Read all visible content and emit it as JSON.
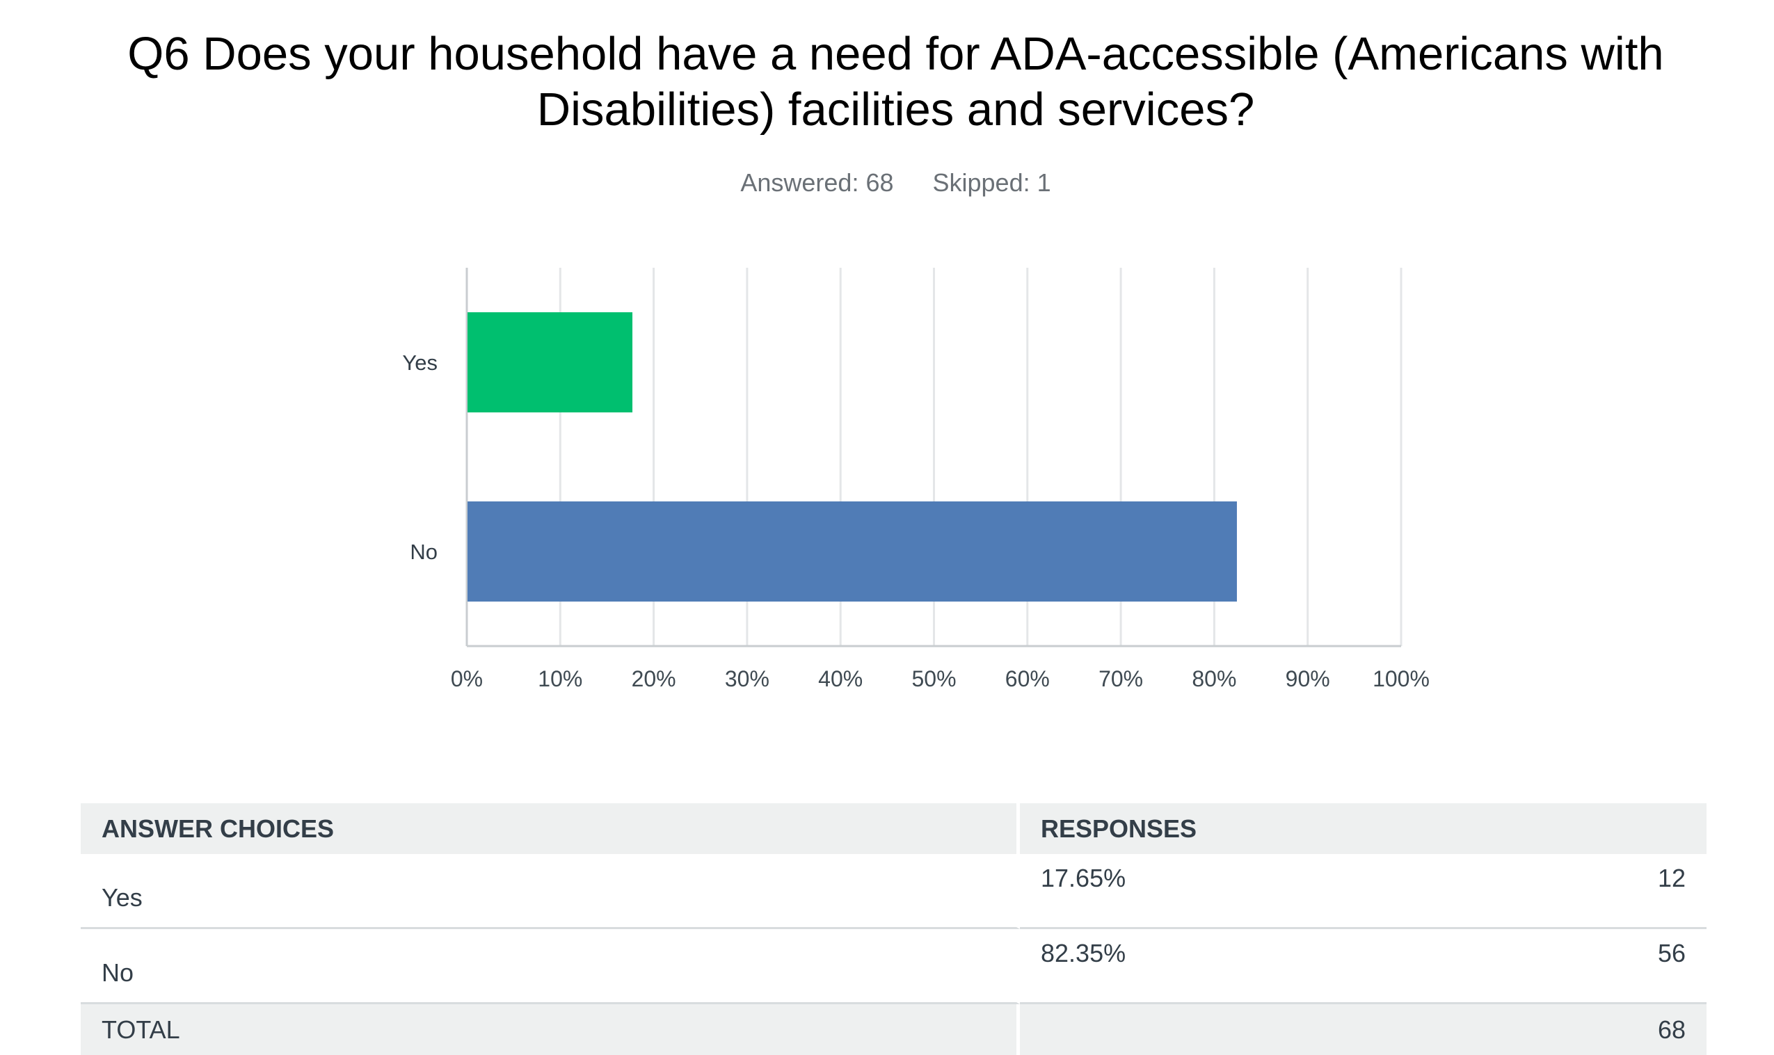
{
  "question": {
    "title_line1": "Q6 Does your household have a need for ADA-accessible (Americans with",
    "title_line2": "Disabilities) facilities and services?",
    "answered_label": "Answered: 68",
    "skipped_label": "Skipped: 1"
  },
  "chart_data": {
    "type": "bar",
    "orientation": "horizontal",
    "categories": [
      "Yes",
      "No"
    ],
    "values": [
      17.65,
      82.35
    ],
    "colors": [
      "#00bf6f",
      "#507cb6"
    ],
    "xlim": [
      0,
      100
    ],
    "x_ticks": [
      "0%",
      "10%",
      "20%",
      "30%",
      "40%",
      "50%",
      "60%",
      "70%",
      "80%",
      "90%",
      "100%"
    ],
    "grid": true,
    "title": "",
    "xlabel": "",
    "ylabel": ""
  },
  "table": {
    "header_choices": "ANSWER CHOICES",
    "header_responses": "RESPONSES",
    "rows": [
      {
        "choice": "Yes",
        "percent": "17.65%",
        "count": "12"
      },
      {
        "choice": "No",
        "percent": "82.35%",
        "count": "56"
      }
    ],
    "total_label": "TOTAL",
    "total_count": "68"
  }
}
